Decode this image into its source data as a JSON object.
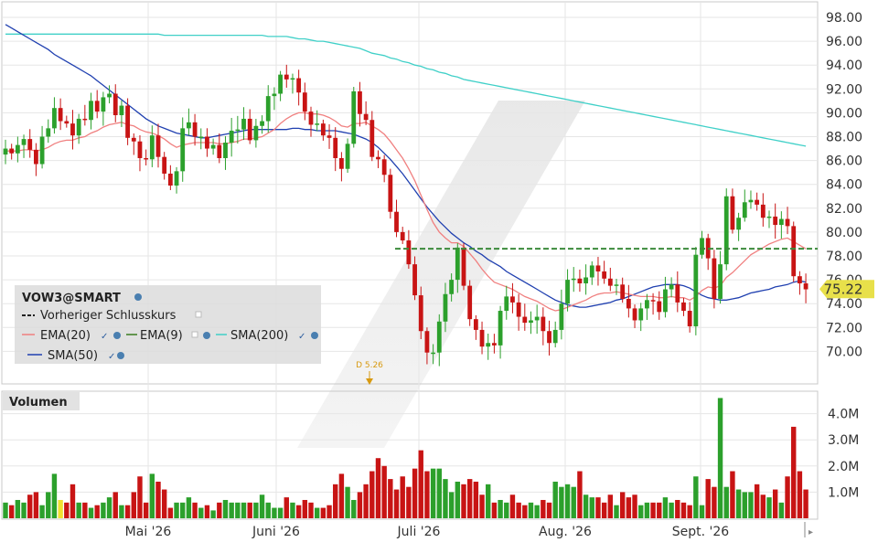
{
  "chart_data": [
    {
      "type": "candlestick",
      "ticker": "VOW3@SMART",
      "ylim": [
        68,
        99
      ],
      "y_ticks": [
        "98.00",
        "96.00",
        "94.00",
        "92.00",
        "90.00",
        "88.00",
        "86.00",
        "84.00",
        "82.00",
        "80.00",
        "78.00",
        "76.00",
        "74.00",
        "72.00",
        "70.00"
      ],
      "x_labels": [
        "Mai '26",
        "Juni '26",
        "Juli '26",
        "Aug. '26",
        "Sept. '26"
      ],
      "last_price": "75.22",
      "previous_close": 78.6,
      "dividend_label": "D 5.26",
      "legend": {
        "ticker": "VOW3@SMART",
        "items": [
          {
            "key": "prev",
            "label": "Vorheriger Schlusskurs"
          },
          {
            "key": "ema20",
            "label": "EMA(20)"
          },
          {
            "key": "ema9",
            "label": "EMA(9)"
          },
          {
            "key": "sma200",
            "label": "SMA(200)"
          },
          {
            "key": "sma50",
            "label": "SMA(50)"
          }
        ]
      },
      "colors": {
        "up": "#2ca02c",
        "down": "#c81414",
        "ema20": "#f08080",
        "ema9": "#3a7d1e",
        "sma200": "#40d0c8",
        "sma50": "#2040b0",
        "prev": "#3b8a3b",
        "last_badge": "#e8e04a"
      },
      "close": [
        87.0,
        86.6,
        87.3,
        87.8,
        86.9,
        85.7,
        88.0,
        88.7,
        90.4,
        89.3,
        89.1,
        88.1,
        89.5,
        89.4,
        91.0,
        90.1,
        91.3,
        91.6,
        89.8,
        90.6,
        87.9,
        87.6,
        86.2,
        86.1,
        88.1,
        86.3,
        84.9,
        83.9,
        85.1,
        88.7,
        89.2,
        88.0,
        88.0,
        87.0,
        87.3,
        86.2,
        87.5,
        88.5,
        88.6,
        89.5,
        87.7,
        88.9,
        89.3,
        91.4,
        91.6,
        93.2,
        92.8,
        92.9,
        91.7,
        90.1,
        89.0,
        89.1,
        88.1,
        87.9,
        86.2,
        85.3,
        87.4,
        91.8,
        89.9,
        89.4,
        86.3,
        86.1,
        84.8,
        81.7,
        80.0,
        79.3,
        77.3,
        74.7,
        71.7,
        69.9,
        69.9,
        72.5,
        74.8,
        76.0,
        78.7,
        75.5,
        72.7,
        71.8,
        70.4,
        70.7,
        70.5,
        73.4,
        74.6,
        74.1,
        72.9,
        72.4,
        72.6,
        72.9,
        71.7,
        70.7,
        71.8,
        74.0,
        76.0,
        76.1,
        75.7,
        76.2,
        77.2,
        76.7,
        76.1,
        75.5,
        75.6,
        74.4,
        73.6,
        72.6,
        73.6,
        74.3,
        74.2,
        73.3,
        75.2,
        75.6,
        74.1,
        73.4,
        72.1,
        78.1,
        79.5,
        77.8,
        74.4,
        77.3,
        83.0,
        80.2,
        81.2,
        82.5,
        82.7,
        82.3,
        81.2,
        81.3,
        80.6,
        81.1,
        80.5,
        76.3,
        75.7,
        75.2
      ],
      "volume": [
        0.6,
        0.5,
        0.7,
        0.6,
        0.9,
        1.0,
        0.5,
        1.0,
        1.7,
        0.7,
        0.6,
        1.3,
        0.6,
        0.6,
        0.4,
        0.5,
        0.6,
        0.8,
        1.0,
        0.5,
        0.5,
        1.0,
        1.6,
        0.6,
        1.7,
        1.4,
        1.1,
        0.4,
        0.6,
        0.6,
        0.8,
        0.6,
        0.4,
        0.5,
        0.3,
        0.6,
        0.7,
        0.6,
        0.6,
        0.6,
        0.6,
        0.6,
        0.9,
        0.6,
        0.4,
        0.4,
        0.8,
        0.6,
        0.5,
        0.7,
        0.6,
        0.4,
        0.4,
        0.5,
        1.3,
        1.7,
        1.2,
        0.7,
        1.0,
        1.3,
        1.8,
        2.3,
        2.0,
        1.5,
        1.1,
        1.6,
        1.2,
        1.9,
        2.6,
        1.8,
        1.9,
        1.9,
        1.5,
        1.0,
        1.4,
        1.3,
        1.5,
        1.4,
        0.9,
        1.3,
        0.6,
        0.7,
        0.6,
        0.9,
        0.6,
        0.5,
        0.6,
        0.5,
        0.7,
        0.6,
        1.4,
        1.2,
        1.3,
        1.2,
        1.8,
        0.9,
        0.8,
        0.8,
        0.6,
        0.9,
        0.5,
        1.0,
        0.8,
        0.9,
        0.5,
        0.6,
        0.6,
        0.6,
        0.8,
        0.6,
        0.7,
        0.6,
        0.5,
        1.6,
        0.5,
        1.5,
        1.2,
        4.6,
        1.2,
        1.8,
        1.1,
        1.0,
        1.0,
        1.3,
        0.9,
        0.8,
        1.1,
        0.6,
        1.6,
        3.5,
        1.8,
        1.1
      ],
      "ema20": [
        86.8,
        86.8,
        86.8,
        86.9,
        86.9,
        86.8,
        86.9,
        87.1,
        87.4,
        87.6,
        87.7,
        87.7,
        87.9,
        88.0,
        88.3,
        88.5,
        88.8,
        89.0,
        89.1,
        89.2,
        89.0,
        88.9,
        88.6,
        88.4,
        88.3,
        88.1,
        87.8,
        87.4,
        87.1,
        87.3,
        87.4,
        87.5,
        87.5,
        87.5,
        87.5,
        87.4,
        87.4,
        87.5,
        87.6,
        87.8,
        87.8,
        87.9,
        88.0,
        88.3,
        88.6,
        89.1,
        89.5,
        89.8,
        90.0,
        90.0,
        89.9,
        89.9,
        89.8,
        89.6,
        89.3,
        88.9,
        88.8,
        89.1,
        89.1,
        89.2,
        88.9,
        88.6,
        88.2,
        87.6,
        86.9,
        86.2,
        85.3,
        84.3,
        83.1,
        81.9,
        80.8,
        80.0,
        79.5,
        79.1,
        79.1,
        78.8,
        78.2,
        77.6,
        76.9,
        76.3,
        75.8,
        75.6,
        75.4,
        75.2,
        74.9,
        74.6,
        74.4,
        74.2,
        73.9,
        73.6,
        73.4,
        73.5,
        73.7,
        73.9,
        74.1,
        74.3,
        74.6,
        74.8,
        74.9,
        74.9,
        75.0,
        74.9,
        74.8,
        74.7,
        74.6,
        74.6,
        74.6,
        74.5,
        74.5,
        74.6,
        74.5,
        74.5,
        74.3,
        74.6,
        75.1,
        75.4,
        75.3,
        75.5,
        76.2,
        76.6,
        77.1,
        77.6,
        78.1,
        78.4,
        78.7,
        79.0,
        79.2,
        79.4,
        79.5,
        79.2,
        78.9,
        78.6
      ],
      "sma50": [
        97.4,
        97.1,
        96.8,
        96.5,
        96.2,
        95.9,
        95.6,
        95.3,
        94.9,
        94.6,
        94.3,
        94.0,
        93.7,
        93.4,
        93.1,
        92.7,
        92.3,
        91.9,
        91.5,
        91.1,
        90.7,
        90.3,
        89.9,
        89.5,
        89.2,
        88.9,
        88.7,
        88.5,
        88.3,
        88.2,
        88.1,
        88.0,
        87.9,
        87.9,
        88.0,
        88.1,
        88.2,
        88.3,
        88.4,
        88.5,
        88.6,
        88.6,
        88.6,
        88.6,
        88.6,
        88.6,
        88.6,
        88.7,
        88.7,
        88.6,
        88.6,
        88.5,
        88.5,
        88.5,
        88.5,
        88.4,
        88.3,
        88.2,
        88.0,
        87.8,
        87.5,
        87.1,
        86.6,
        86.1,
        85.5,
        84.9,
        84.2,
        83.5,
        82.8,
        82.1,
        81.5,
        80.9,
        80.4,
        79.9,
        79.5,
        79.1,
        78.8,
        78.4,
        78.1,
        77.7,
        77.4,
        77.1,
        76.7,
        76.4,
        76.1,
        75.8,
        75.5,
        75.2,
        74.9,
        74.6,
        74.3,
        74.1,
        73.9,
        73.8,
        73.7,
        73.7,
        73.8,
        73.9,
        74.0,
        74.1,
        74.3,
        74.4,
        74.6,
        74.8,
        75.0,
        75.2,
        75.4,
        75.5,
        75.6,
        75.6,
        75.6,
        75.5,
        75.3,
        75.0,
        74.7,
        74.5,
        74.4,
        74.3,
        74.3,
        74.4,
        74.5,
        74.7,
        74.9,
        75.0,
        75.1,
        75.2,
        75.4,
        75.5,
        75.6,
        75.8,
        75.9,
        75.8
      ],
      "sma200": [
        96.6,
        96.6,
        96.6,
        96.6,
        96.6,
        96.6,
        96.6,
        96.6,
        96.6,
        96.6,
        96.6,
        96.6,
        96.6,
        96.6,
        96.6,
        96.6,
        96.6,
        96.6,
        96.6,
        96.6,
        96.6,
        96.6,
        96.6,
        96.6,
        96.6,
        96.6,
        96.5,
        96.5,
        96.5,
        96.5,
        96.5,
        96.5,
        96.5,
        96.5,
        96.5,
        96.5,
        96.5,
        96.5,
        96.5,
        96.5,
        96.5,
        96.5,
        96.5,
        96.4,
        96.4,
        96.4,
        96.4,
        96.3,
        96.2,
        96.2,
        96.1,
        96.0,
        96.0,
        95.9,
        95.8,
        95.7,
        95.6,
        95.5,
        95.4,
        95.2,
        95.0,
        94.9,
        94.8,
        94.6,
        94.5,
        94.3,
        94.2,
        94.0,
        93.9,
        93.7,
        93.6,
        93.4,
        93.3,
        93.1,
        93.0,
        92.8,
        92.7,
        92.6,
        92.5,
        92.4,
        92.3,
        92.2,
        92.1,
        92.0,
        91.9,
        91.8,
        91.7,
        91.6,
        91.5,
        91.4,
        91.3,
        91.2,
        91.1,
        91.0,
        90.9,
        90.8,
        90.7,
        90.6,
        90.5,
        90.4,
        90.3,
        90.2,
        90.1,
        90.0,
        89.9,
        89.8,
        89.7,
        89.6,
        89.5,
        89.4,
        89.3,
        89.2,
        89.1,
        89.0,
        88.9,
        88.8,
        88.7,
        88.6,
        88.5,
        88.4,
        88.3,
        88.2,
        88.1,
        88.0,
        87.9,
        87.8,
        87.7,
        87.6,
        87.5,
        87.4,
        87.3,
        87.2
      ]
    },
    {
      "type": "bar",
      "title": "Volumen",
      "unit": "M",
      "y_ticks": [
        "4.0M",
        "3.0M",
        "2.0M",
        "1.0M"
      ],
      "ylim": [
        0,
        5
      ]
    }
  ]
}
